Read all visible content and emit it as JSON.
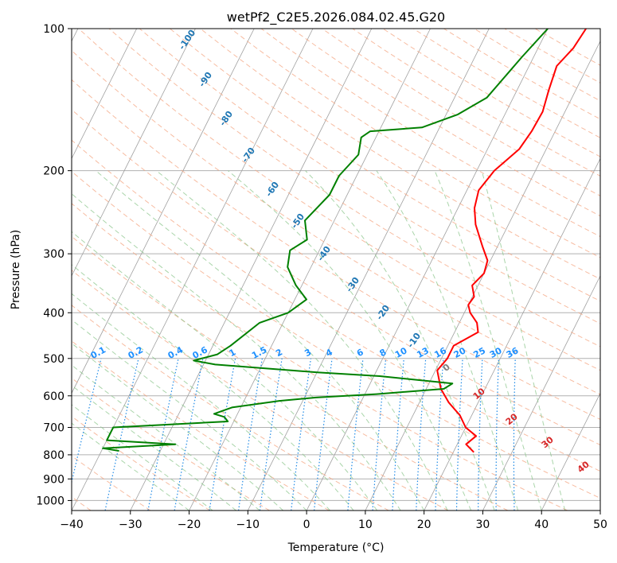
{
  "chart_data": {
    "type": "line",
    "title": "wetPf2_C2E5.2026.084.02.45.G20",
    "xlabel": "Temperature (°C)",
    "ylabel": "Pressure (hPa)",
    "xlim": [
      -40,
      50
    ],
    "ylim": [
      1050,
      100
    ],
    "y_scale": "log",
    "grid": true,
    "x_ticks": [
      "−40",
      "−30",
      "−20",
      "−10",
      "0",
      "10",
      "20",
      "30",
      "40",
      "50"
    ],
    "y_ticks": [
      {
        "p": 100,
        "label": "100"
      },
      {
        "p": 200,
        "label": "200"
      },
      {
        "p": 300,
        "label": "300"
      },
      {
        "p": 400,
        "label": "400"
      },
      {
        "p": 500,
        "label": "500"
      },
      {
        "p": 600,
        "label": "600"
      },
      {
        "p": 700,
        "label": "700"
      },
      {
        "p": 800,
        "label": "800"
      },
      {
        "p": 900,
        "label": "900"
      },
      {
        "p": 1000,
        "label": "1000"
      }
    ],
    "series": [
      {
        "color": "#ff0000",
        "points": [
          [
            6.5,
            100
          ],
          [
            6.0,
            110
          ],
          [
            4.7,
            120
          ],
          [
            5.4,
            135
          ],
          [
            6.2,
            150
          ],
          [
            6.0,
            165
          ],
          [
            5.4,
            180
          ],
          [
            3.0,
            200
          ],
          [
            2.0,
            220
          ],
          [
            2.8,
            240
          ],
          [
            4.4,
            260
          ],
          [
            7.5,
            290
          ],
          [
            9.5,
            310
          ],
          [
            10.0,
            330
          ],
          [
            9.0,
            350
          ],
          [
            10.3,
            370
          ],
          [
            10.0,
            385
          ],
          [
            11.0,
            400
          ],
          [
            13.0,
            420
          ],
          [
            14.0,
            440
          ],
          [
            11.0,
            470
          ],
          [
            11.0,
            500
          ],
          [
            10.3,
            530
          ],
          [
            12.5,
            580
          ],
          [
            15.0,
            620
          ],
          [
            18.0,
            660
          ],
          [
            20.0,
            700
          ],
          [
            22.5,
            730
          ],
          [
            21.5,
            760
          ],
          [
            23.5,
            790
          ]
        ]
      },
      {
        "color": "#008000",
        "points": [
          [
            0,
            100
          ],
          [
            -2,
            115
          ],
          [
            -4.5,
            140
          ],
          [
            -8,
            152
          ],
          [
            -13,
            162
          ],
          [
            -21.5,
            165
          ],
          [
            -22.5,
            170
          ],
          [
            -21.5,
            185
          ],
          [
            -23,
            205
          ],
          [
            -23,
            225
          ],
          [
            -25,
            255
          ],
          [
            -23,
            280
          ],
          [
            -25,
            295
          ],
          [
            -24,
            320
          ],
          [
            -21,
            350
          ],
          [
            -18,
            375
          ],
          [
            -20,
            400
          ],
          [
            -24,
            420
          ],
          [
            -27,
            470
          ],
          [
            -28.5,
            490
          ],
          [
            -32,
            505
          ],
          [
            -28,
            515
          ],
          [
            -10,
            535
          ],
          [
            1,
            545
          ],
          [
            14,
            565
          ],
          [
            13,
            580
          ],
          [
            2,
            595
          ],
          [
            -8,
            605
          ],
          [
            -14,
            615
          ],
          [
            -21.5,
            635
          ],
          [
            -24,
            655
          ],
          [
            -22,
            665
          ],
          [
            -21,
            680
          ],
          [
            -40,
            700
          ],
          [
            -40,
            745
          ],
          [
            -28,
            760
          ],
          [
            -40,
            775
          ],
          [
            -37,
            785
          ]
        ]
      }
    ],
    "dry_adiabat_labels": [
      "-100",
      "-90",
      "-80",
      "-70",
      "-60",
      "-50",
      "-40",
      "-30",
      "-20",
      "-10"
    ],
    "mixing_ratio_labels": [
      "0.1",
      "0.2",
      "0.4",
      "0.6",
      "1",
      "1.5",
      "2",
      "3",
      "4",
      "6",
      "8",
      "10",
      "13",
      "16",
      "20",
      "25",
      "30",
      "36"
    ],
    "moist_adiabat_labels": [
      "0",
      "10",
      "20",
      "30",
      "40"
    ],
    "colors": {
      "temperature": "#ff0000",
      "dewpoint": "#008000",
      "isotherm": "#a0a0a0",
      "isobar": "#b0b0b0",
      "dry_adiabat": "#f4a582",
      "moist_adiabat": "#8dc78d",
      "mixing_ratio": "#1f8ae6",
      "dry_label": "#1f77b4",
      "mix_label": "#1e90ff",
      "moist_label": "#d62728",
      "zero_label": "#7f7f7f"
    }
  }
}
